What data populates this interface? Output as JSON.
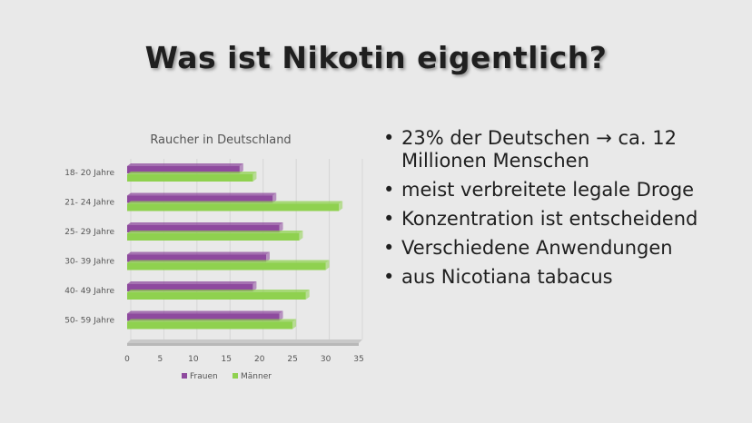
{
  "slide": {
    "title": "Was ist Nikotin eigentlich?"
  },
  "bullets": [
    "23% der Deutschen → ca. 12 Millionen Menschen",
    "meist verbreitete legale Droge",
    "Konzentration ist entscheidend",
    "Verschiedene Anwendungen",
    "aus Nicotiana tabacus"
  ],
  "chart_data": {
    "type": "bar",
    "orientation": "horizontal",
    "title": "Raucher in Deutschland",
    "categories": [
      "18- 20 Jahre",
      "21- 24 Jahre",
      "25- 29 Jahre",
      "30- 39 Jahre",
      "40- 49 Jahre",
      "50- 59 Jahre"
    ],
    "series": [
      {
        "name": "Frauen",
        "values": [
          17,
          22,
          23,
          21,
          19,
          23
        ],
        "color": "#8e4a9e"
      },
      {
        "name": "Männer",
        "values": [
          19,
          32,
          26,
          30,
          27,
          25
        ],
        "color": "#8fd14f"
      }
    ],
    "xlim": [
      0,
      35
    ],
    "xticks": [
      0,
      5,
      10,
      15,
      20,
      25,
      30,
      35
    ],
    "legend_position": "bottom",
    "grid": true
  }
}
